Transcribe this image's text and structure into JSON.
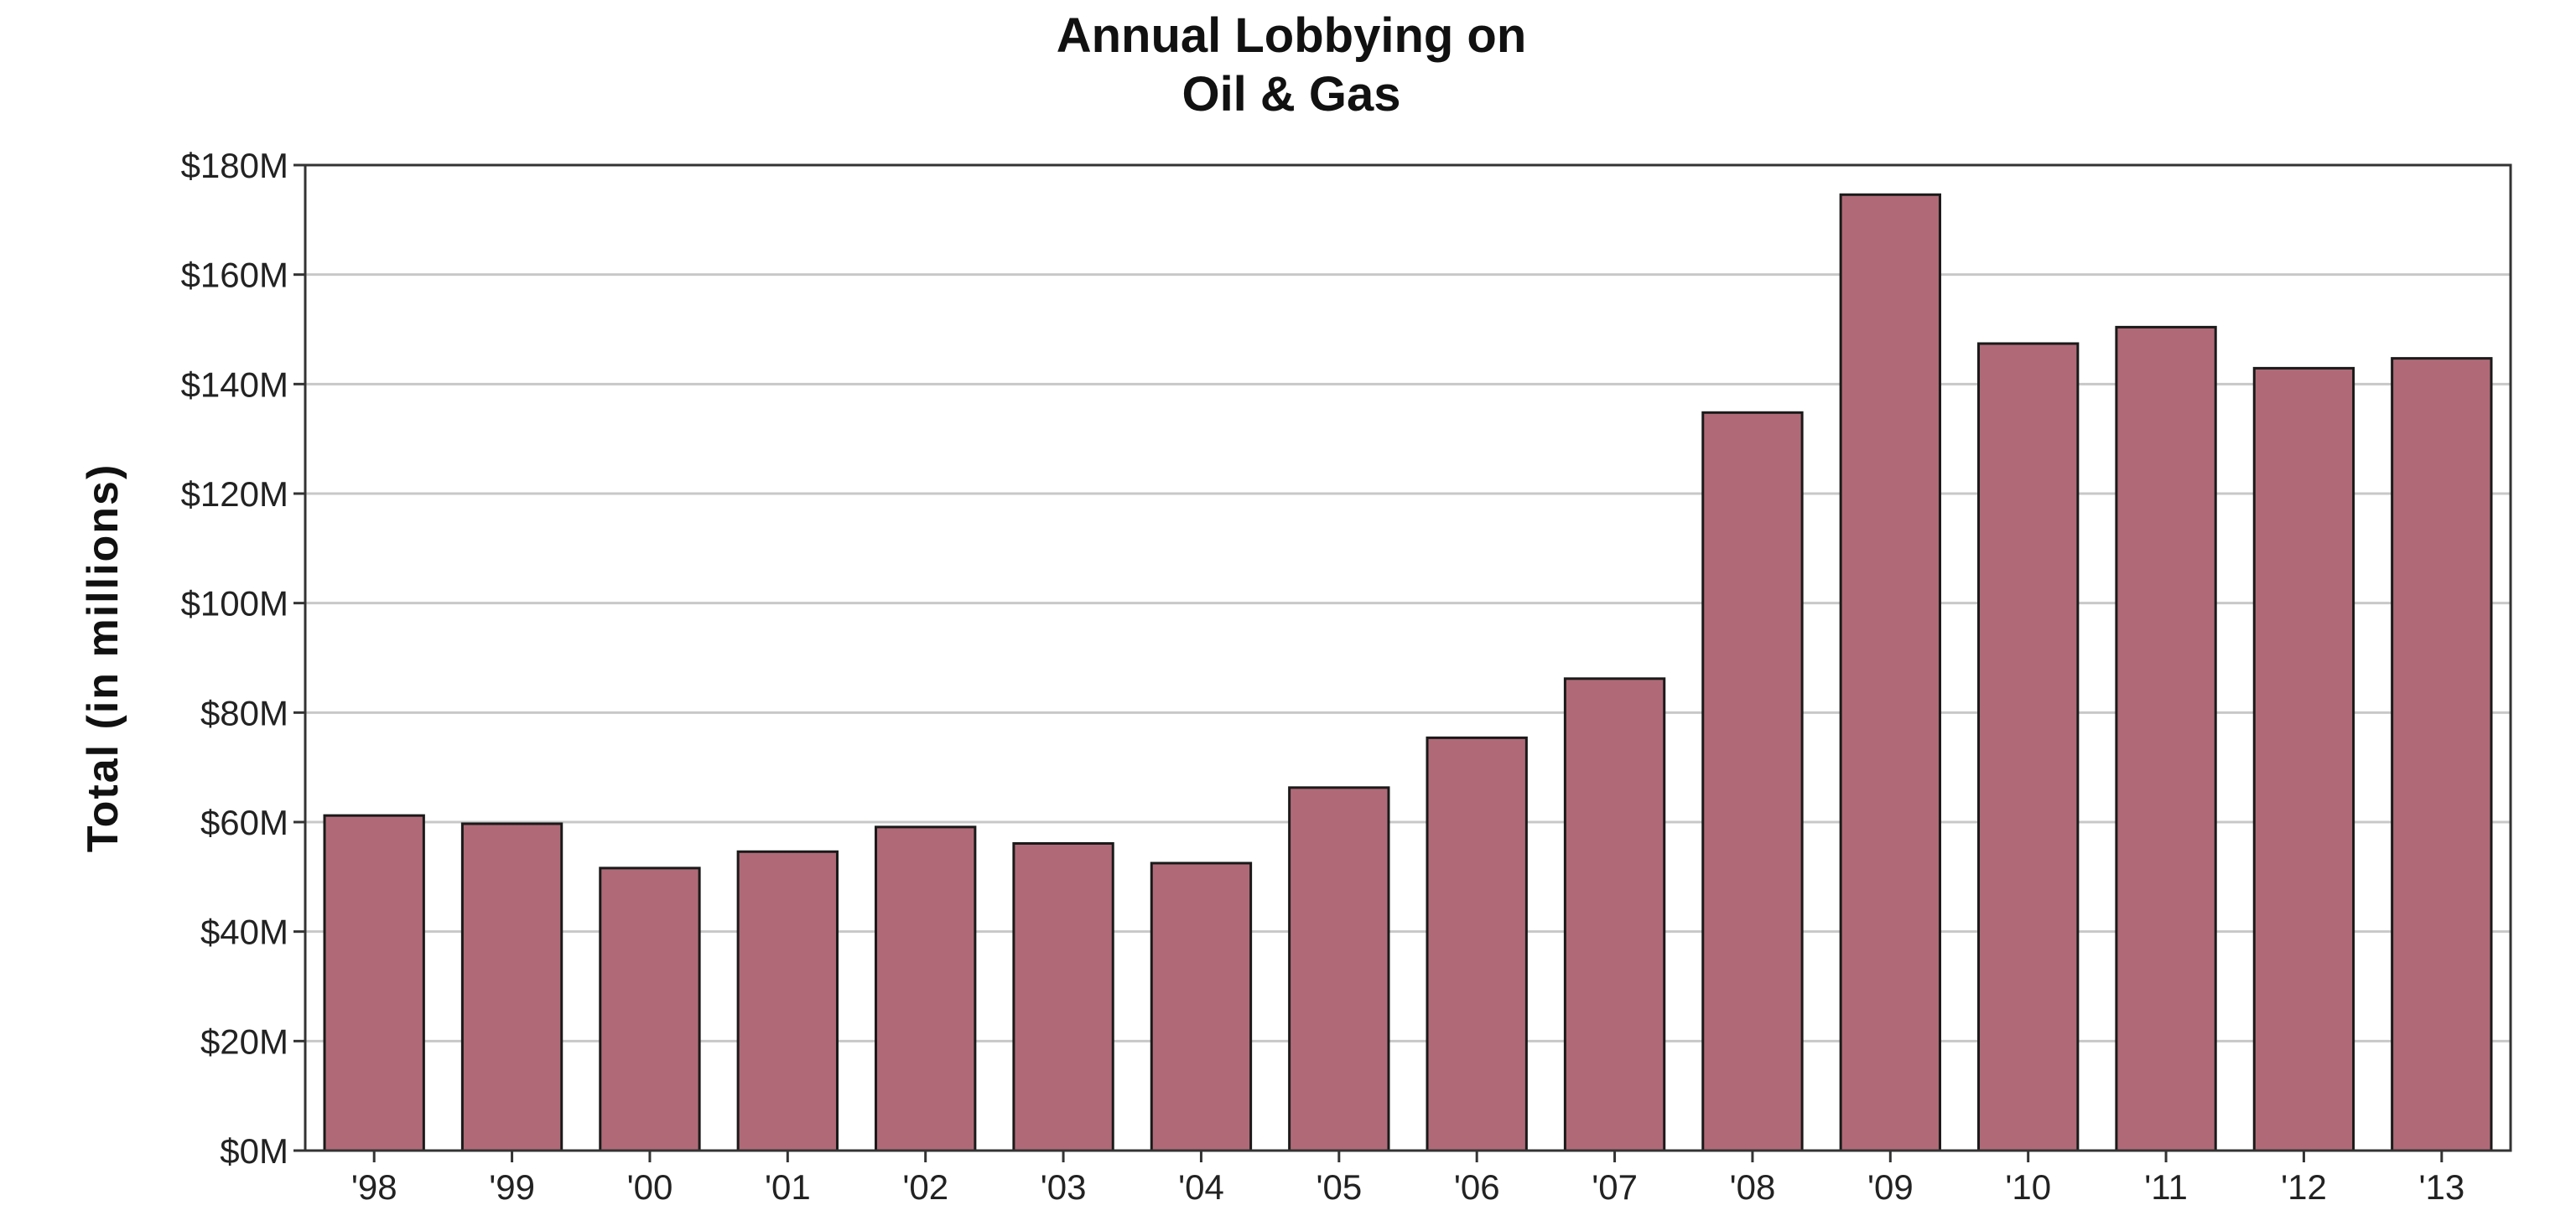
{
  "chart_data": {
    "type": "bar",
    "title": [
      "Annual Lobbying on",
      "Oil & Gas"
    ],
    "xlabel": "",
    "ylabel": "Total (in millions)",
    "categories": [
      "'98",
      "'99",
      "'00",
      "'01",
      "'02",
      "'03",
      "'04",
      "'05",
      "'06",
      "'07",
      "'08",
      "'09",
      "'10",
      "'11",
      "'12",
      "'13"
    ],
    "values": [
      61.2,
      59.7,
      51.6,
      54.6,
      59.1,
      56.1,
      52.5,
      66.3,
      75.4,
      86.2,
      134.8,
      174.6,
      147.4,
      150.4,
      142.9,
      144.7
    ],
    "ylim": [
      0,
      180
    ],
    "yticks": [
      0,
      20,
      40,
      60,
      80,
      100,
      120,
      140,
      160,
      180
    ],
    "ytick_labels": [
      "$0M",
      "$20M",
      "$40M",
      "$60M",
      "$80M",
      "$100M",
      "$120M",
      "$140M",
      "$160M",
      "$180M"
    ],
    "grid": true,
    "legend": "none",
    "colors": {
      "bar": "#B06A77",
      "bar_edge": "#1a1a1a",
      "grid": "#c8c8c8",
      "axis": "#333333"
    }
  }
}
